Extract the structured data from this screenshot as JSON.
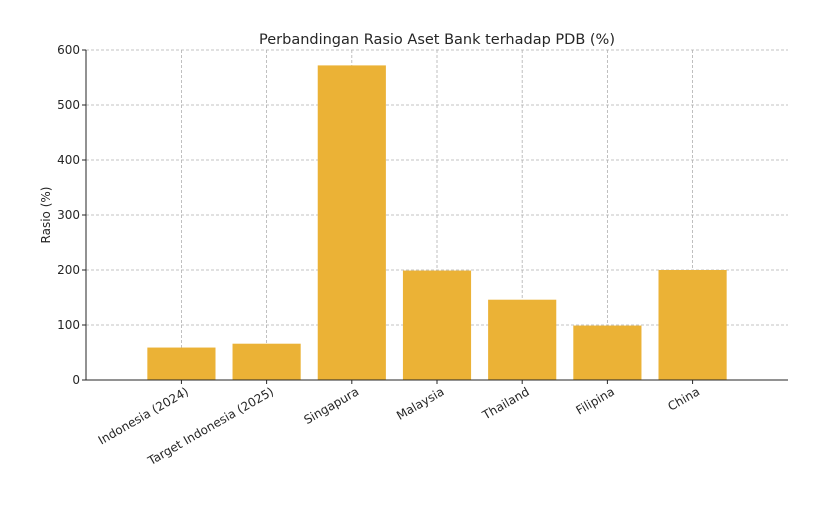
{
  "chart_data": {
    "type": "bar",
    "title": "Perbandingan Rasio Aset Bank terhadap PDB (%)",
    "xlabel": "",
    "ylabel": "Rasio (%)",
    "categories": [
      "Indonesia (2024)",
      "Target Indonesia (2025)",
      "Singapura",
      "Malaysia",
      "Thailand",
      "Filipina",
      "China"
    ],
    "values": [
      59,
      66,
      572,
      199,
      146,
      99,
      200
    ],
    "ylim": [
      0,
      600
    ],
    "yticks": [
      0,
      100,
      200,
      300,
      400,
      500,
      600
    ],
    "grid": true,
    "bar_color": "#EBB236"
  }
}
